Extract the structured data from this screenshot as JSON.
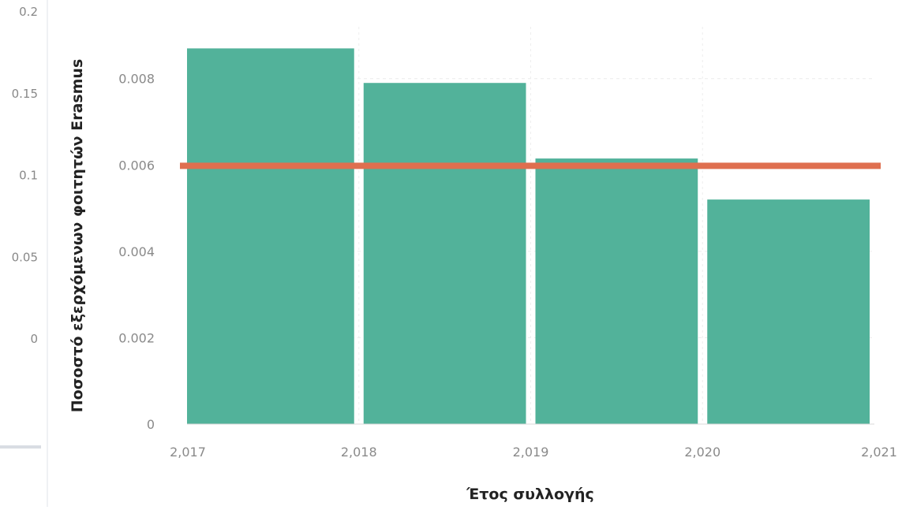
{
  "chart_data": [
    {
      "type": "bar",
      "x_bins": [
        {
          "start": 2017,
          "end": 2018,
          "value": 0.0087
        },
        {
          "start": 2018,
          "end": 2019,
          "value": 0.0079
        },
        {
          "start": 2019,
          "end": 2020,
          "value": 0.00615
        },
        {
          "start": 2020,
          "end": 2021,
          "value": 0.0052
        }
      ],
      "reference_line": {
        "value": 0.00598,
        "color": "#df6f4f"
      },
      "xlabel": "Έτος συλλογής",
      "ylabel": "Ποσοστό εξερχόμενων φοιτητών Erasmus",
      "x_ticks": [
        "2,017",
        "2,018",
        "2,019",
        "2,020",
        "2,021"
      ],
      "y_ticks": [
        "0",
        "0.002",
        "0.004",
        "0.006",
        "0.008"
      ],
      "xlim": [
        2017,
        2021
      ],
      "ylim": [
        0,
        0.0092
      ],
      "grid": true,
      "bar_color": "#52b29a"
    },
    {
      "type": "bar",
      "visible_partial": true,
      "y_ticks": [
        "0.2",
        "0.15",
        "0.1",
        "0.05",
        "0"
      ],
      "ylim": [
        0,
        0.2
      ]
    }
  ]
}
